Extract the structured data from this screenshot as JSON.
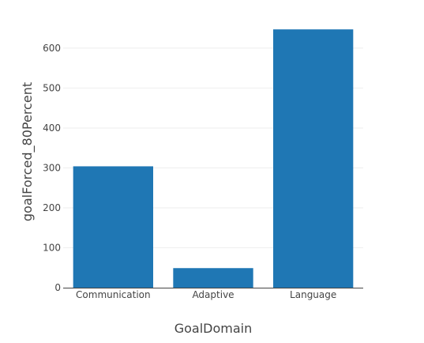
{
  "chart_data": {
    "type": "bar",
    "categories": [
      "Communication",
      "Adaptive",
      "Language"
    ],
    "values": [
      304,
      49,
      647
    ],
    "xlabel": "GoalDomain",
    "ylabel": "goalForced_80Percent",
    "ylim": [
      0,
      681
    ],
    "yticks": [
      0,
      100,
      200,
      300,
      400,
      500,
      600
    ],
    "grid": "horizontal",
    "bar_color": "#1f77b4",
    "grid_color": "#eeeeee",
    "axis_color": "#444444"
  }
}
